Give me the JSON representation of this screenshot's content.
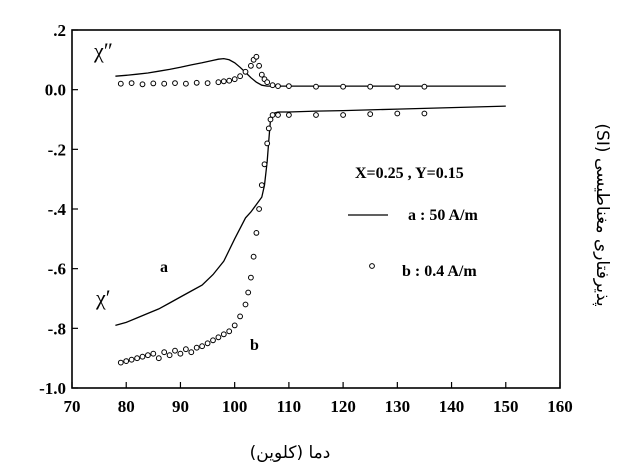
{
  "chart_data": {
    "type": "scatter",
    "xlabel": "دما (کلوین)",
    "ylabel": "پذیرفتاری مغناطیسی (SI)",
    "xlim": [
      70,
      160
    ],
    "ylim": [
      -1.0,
      0.2
    ],
    "x_ticks": [
      "70",
      "80",
      "90",
      "100",
      "110",
      "120",
      "130",
      "140",
      "150",
      "160"
    ],
    "y_ticks": [
      ".2",
      "0.0",
      "-.2",
      "-.4",
      "-.6",
      "-.8",
      "-1.0"
    ],
    "x_tick_values": [
      70,
      80,
      90,
      100,
      110,
      120,
      130,
      140,
      150,
      160
    ],
    "y_tick_values": [
      0.2,
      0.0,
      -0.2,
      -0.4,
      -0.6,
      -0.8,
      -1.0
    ],
    "legend_title": "X=0.25 , Y=0.15",
    "legend": [
      {
        "label": "a : 50 A/m",
        "style": "line"
      },
      {
        "label": "b : 0.4 A/m",
        "style": "circle"
      }
    ],
    "annotations": {
      "chi_double_prime": "χ″",
      "chi_prime": "χ′",
      "a": "a",
      "b": "b"
    },
    "series": [
      {
        "name": "a : 50 A/m",
        "component": "χ'",
        "style": "line",
        "x": [
          78,
          80,
          82,
          84,
          86,
          88,
          90,
          92,
          94,
          96,
          98,
          100,
          102,
          103,
          104,
          105,
          105.5,
          106,
          106.3,
          106.6,
          107,
          108,
          110,
          115,
          120,
          130,
          140,
          150
        ],
        "y": [
          -0.79,
          -0.78,
          -0.765,
          -0.75,
          -0.735,
          -0.715,
          -0.695,
          -0.675,
          -0.655,
          -0.62,
          -0.575,
          -0.5,
          -0.43,
          -0.41,
          -0.385,
          -0.36,
          -0.32,
          -0.24,
          -0.17,
          -0.1,
          -0.08,
          -0.075,
          -0.075,
          -0.072,
          -0.07,
          -0.065,
          -0.06,
          -0.055
        ]
      },
      {
        "name": "a : 50 A/m",
        "component": "χ''",
        "style": "line",
        "x": [
          78,
          80,
          82,
          84,
          86,
          88,
          90,
          92,
          94,
          96,
          97,
          98,
          99,
          100,
          101,
          102,
          103,
          104,
          105,
          106,
          107,
          108,
          110,
          120,
          130,
          140,
          150
        ],
        "y": [
          0.045,
          0.048,
          0.052,
          0.056,
          0.062,
          0.068,
          0.075,
          0.083,
          0.09,
          0.098,
          0.102,
          0.104,
          0.1,
          0.09,
          0.075,
          0.058,
          0.04,
          0.025,
          0.015,
          0.012,
          0.012,
          0.012,
          0.012,
          0.012,
          0.012,
          0.012,
          0.012
        ]
      },
      {
        "name": "b : 0.4 A/m",
        "component": "χ'",
        "style": "circle",
        "x": [
          79,
          80,
          81,
          82,
          83,
          84,
          85,
          86,
          87,
          88,
          89,
          90,
          91,
          92,
          93,
          94,
          95,
          96,
          97,
          98,
          99,
          100,
          101,
          102,
          102.5,
          103,
          103.5,
          104,
          104.5,
          105,
          105.5,
          106,
          106.3,
          106.6,
          107,
          108,
          110,
          115,
          120,
          125,
          130,
          135
        ],
        "y": [
          -0.915,
          -0.91,
          -0.905,
          -0.9,
          -0.895,
          -0.89,
          -0.885,
          -0.9,
          -0.88,
          -0.89,
          -0.875,
          -0.885,
          -0.87,
          -0.88,
          -0.865,
          -0.86,
          -0.85,
          -0.84,
          -0.83,
          -0.82,
          -0.81,
          -0.79,
          -0.76,
          -0.72,
          -0.68,
          -0.63,
          -0.56,
          -0.48,
          -0.4,
          -0.32,
          -0.25,
          -0.18,
          -0.13,
          -0.1,
          -0.085,
          -0.085,
          -0.085,
          -0.085,
          -0.085,
          -0.082,
          -0.08,
          -0.08
        ]
      },
      {
        "name": "b : 0.4 A/m",
        "component": "χ''",
        "style": "circle",
        "x": [
          79,
          81,
          83,
          85,
          87,
          89,
          91,
          93,
          95,
          97,
          98,
          99,
          100,
          101,
          102,
          103,
          103.5,
          104,
          104.5,
          105,
          105.5,
          106,
          107,
          108,
          110,
          115,
          120,
          125,
          130,
          135
        ],
        "y": [
          0.02,
          0.022,
          0.018,
          0.021,
          0.02,
          0.022,
          0.02,
          0.023,
          0.022,
          0.025,
          0.028,
          0.03,
          0.035,
          0.045,
          0.06,
          0.08,
          0.1,
          0.11,
          0.08,
          0.05,
          0.035,
          0.025,
          0.015,
          0.012,
          0.012,
          0.01,
          0.01,
          0.01,
          0.01,
          0.01
        ]
      }
    ]
  }
}
